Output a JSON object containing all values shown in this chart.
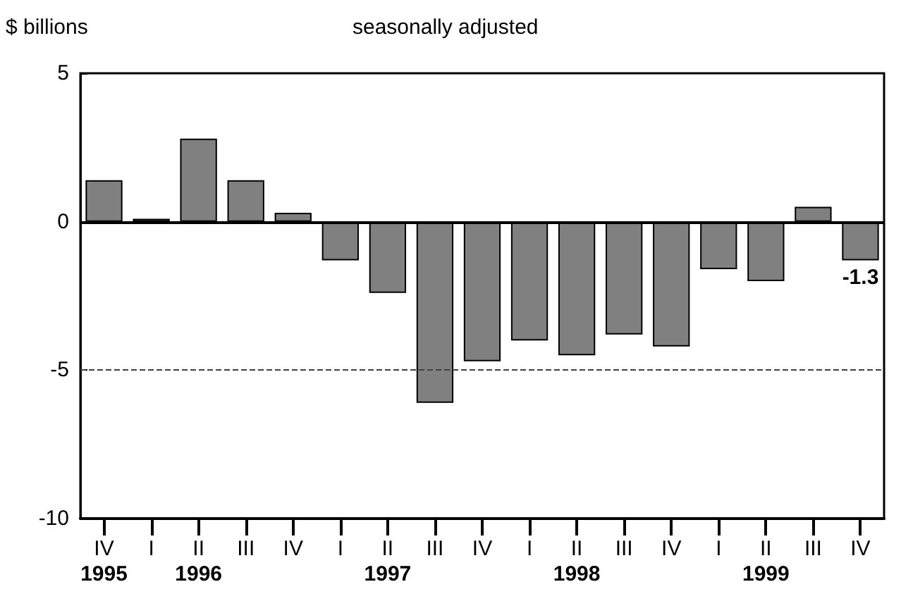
{
  "chart_data": {
    "type": "bar",
    "ylabel": "$ billions",
    "subtitle": "seasonally adjusted",
    "categories": [
      "IV",
      "I",
      "II",
      "III",
      "IV",
      "I",
      "II",
      "III",
      "IV",
      "I",
      "II",
      "III",
      "IV",
      "I",
      "II",
      "III",
      "IV"
    ],
    "values": [
      1.4,
      0.1,
      2.8,
      1.4,
      0.3,
      -1.3,
      -2.4,
      -6.1,
      -4.7,
      -4.0,
      -4.5,
      -3.8,
      -4.2,
      -1.6,
      -2.0,
      0.5,
      -1.3
    ],
    "value_labels": [
      null,
      null,
      null,
      null,
      null,
      null,
      null,
      null,
      null,
      null,
      null,
      null,
      null,
      null,
      null,
      null,
      "-1.3"
    ],
    "color": "#808080",
    "ylim": [
      -10,
      5
    ],
    "yticks": [
      -10,
      -5,
      0,
      5
    ],
    "grid": false,
    "ref_lines": [
      {
        "axis": "y",
        "value": 0,
        "line_style": "solid",
        "color": "#000000"
      },
      {
        "axis": "y",
        "value": -5,
        "line_style": "dashed",
        "color": "#404040"
      }
    ],
    "annotations": [
      "1995",
      "1996",
      "1997",
      "1998",
      "1999"
    ]
  }
}
